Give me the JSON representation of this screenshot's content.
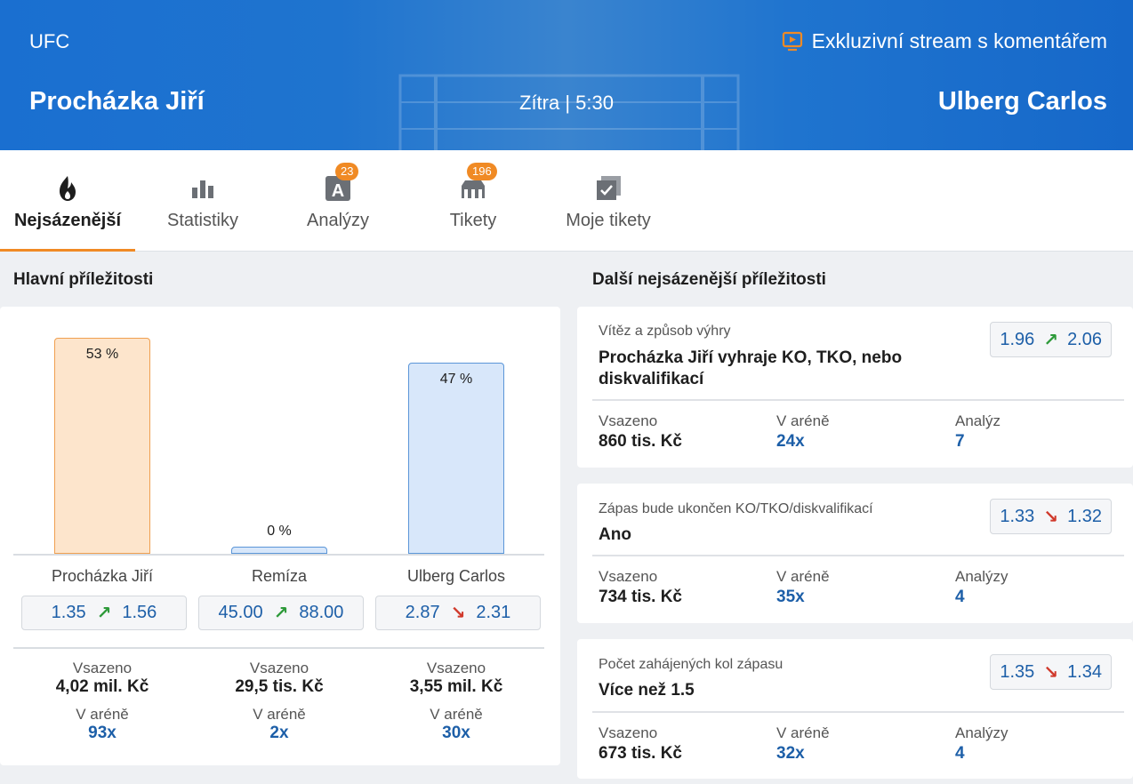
{
  "header": {
    "sport": "UFC",
    "stream_label": "Exkluzivní stream s komentářem",
    "home": "Procházka Jiří",
    "away": "Ulberg Carlos",
    "time": "Zítra | 5:30"
  },
  "tabs": [
    {
      "label": "Nejsázenější",
      "icon": "flame-icon",
      "active": true
    },
    {
      "label": "Statistiky",
      "icon": "bar-chart-icon"
    },
    {
      "label": "Analýzy",
      "icon": "analysis-icon",
      "badge": "23"
    },
    {
      "label": "Tikety",
      "icon": "arena-icon",
      "badge": "196"
    },
    {
      "label": "Moje tikety",
      "icon": "my-tickets-icon"
    }
  ],
  "main": {
    "title": "Hlavní příležitosti",
    "outcomes": [
      {
        "name": "Procházka Jiří",
        "share": 53,
        "share_label": "53 %",
        "odds_old": "1.35",
        "odds_new": "1.56",
        "trend": "up",
        "staked_label": "Vsazeno",
        "staked": "4,02 mil. Kč",
        "arena_label": "V aréně",
        "arena": "93x"
      },
      {
        "name": "Remíza",
        "share": 0,
        "share_label": "0 %",
        "odds_old": "45.00",
        "odds_new": "88.00",
        "trend": "up",
        "staked_label": "Vsazeno",
        "staked": "29,5 tis. Kč",
        "arena_label": "V aréně",
        "arena": "2x"
      },
      {
        "name": "Ulberg Carlos",
        "share": 47,
        "share_label": "47 %",
        "odds_old": "2.87",
        "odds_new": "2.31",
        "trend": "down",
        "staked_label": "Vsazeno",
        "staked": "3,55 mil. Kč",
        "arena_label": "V aréně",
        "arena": "30x"
      }
    ]
  },
  "other": {
    "title": "Další nejsázenější příležitosti",
    "items": [
      {
        "market": "Vítěz a způsob výhry",
        "selection": "Procházka Jiří vyhraje KO, TKO, nebo diskvalifikací",
        "odds_old": "1.96",
        "odds_new": "2.06",
        "trend": "up",
        "staked_label": "Vsazeno",
        "staked": "860 tis. Kč",
        "arena_label": "V aréně",
        "arena": "24x",
        "analyses_label": "Analýz",
        "analyses": "7"
      },
      {
        "market": "Zápas bude ukončen KO/TKO/diskvalifikací",
        "selection": "Ano",
        "odds_old": "1.33",
        "odds_new": "1.32",
        "trend": "down",
        "staked_label": "Vsazeno",
        "staked": "734 tis. Kč",
        "arena_label": "V aréně",
        "arena": "35x",
        "analyses_label": "Analýzy",
        "analyses": "4"
      },
      {
        "market": "Počet zahájených kol zápasu",
        "selection": "Více než 1.5",
        "odds_old": "1.35",
        "odds_new": "1.34",
        "trend": "down",
        "staked_label": "Vsazeno",
        "staked": "673 tis. Kč",
        "arena_label": "V aréně",
        "arena": "32x",
        "analyses_label": "Analýzy",
        "analyses": "4"
      }
    ]
  },
  "arrows": {
    "up": "↗",
    "down": "↘"
  },
  "colors": {
    "brand_blue": "#1a6fd0",
    "accent_orange": "#f08a24",
    "odds_blue": "#1d5fa8",
    "up_green": "#2e9a3a",
    "down_red": "#d0392b"
  }
}
